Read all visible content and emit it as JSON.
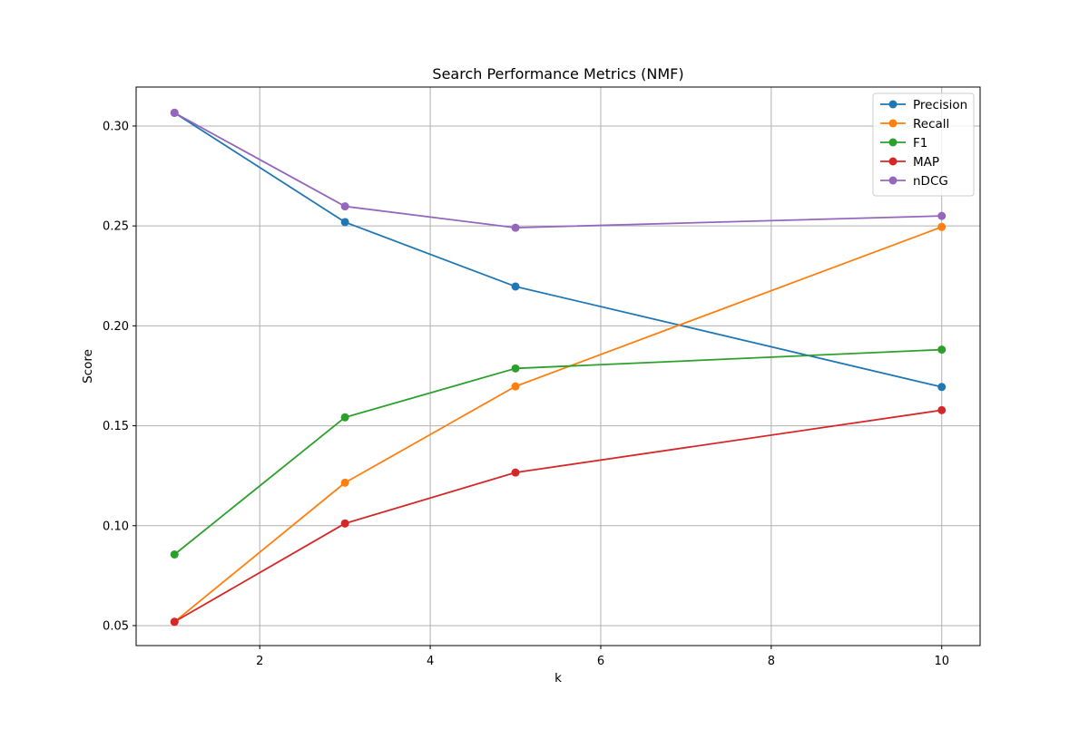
{
  "chart_data": {
    "type": "line",
    "title": "Search Performance Metrics (NMF)",
    "xlabel": "k",
    "ylabel": "Score",
    "x": [
      1,
      3,
      5,
      10
    ],
    "xlim": [
      0.55,
      10.45
    ],
    "ylim": [
      0.04,
      0.3195
    ],
    "xticks": [
      2,
      4,
      6,
      8,
      10
    ],
    "yticks": [
      0.05,
      0.1,
      0.15,
      0.2,
      0.25,
      0.3
    ],
    "xtick_labels": [
      "2",
      "4",
      "6",
      "8",
      "10"
    ],
    "ytick_labels": [
      "0.05",
      "0.10",
      "0.15",
      "0.20",
      "0.25",
      "0.30"
    ],
    "grid": true,
    "legend_position": "top-right",
    "series": [
      {
        "name": "Precision",
        "color": "#1f77b4",
        "values": [
          0.3066,
          0.2519,
          0.2197,
          0.1694
        ]
      },
      {
        "name": "Recall",
        "color": "#ff7f0e",
        "values": [
          0.0519,
          0.1215,
          0.1697,
          0.2495
        ]
      },
      {
        "name": "F1",
        "color": "#2ca02c",
        "values": [
          0.0856,
          0.1542,
          0.1787,
          0.1881
        ]
      },
      {
        "name": "MAP",
        "color": "#d62728",
        "values": [
          0.0519,
          0.1011,
          0.1266,
          0.1578
        ]
      },
      {
        "name": "nDCG",
        "color": "#9467bd",
        "values": [
          0.3066,
          0.2598,
          0.2491,
          0.255
        ]
      }
    ]
  }
}
